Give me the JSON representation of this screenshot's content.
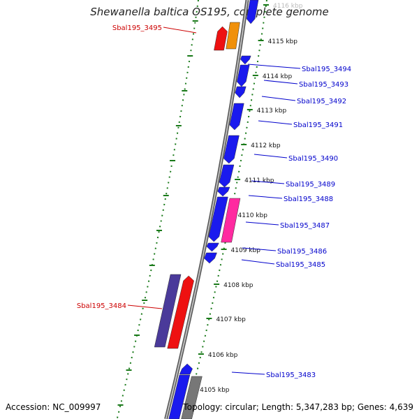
{
  "title": "Shewanella baltica OS195, complete genome",
  "footer": {
    "accession": "Accession: NC_009997",
    "summary": "Topology: circular; Length: 5,347,283 bp; Genes: 4,639"
  },
  "colors": {
    "backbone": "#8a8a8a",
    "tick": "#1a7a1a",
    "label_forward": "#cc0000",
    "label_reverse": "#0000cc",
    "gene_blue": "#1a1aee",
    "gene_red": "#ee1111",
    "gene_orange": "#f0900a",
    "gene_pink": "#ff2aa0",
    "gene_indigo": "#4a3a9a",
    "gene_gray": "#777777"
  },
  "scale": {
    "unit": "kbp",
    "ticks": [
      "4116 kbp",
      "4115 kbp",
      "4114 kbp",
      "4113 kbp",
      "4112 kbp",
      "4111 kbp",
      "4110 kbp",
      "4109 kbp",
      "4108 kbp",
      "4107 kbp",
      "4106 kbp",
      "4105 kbp"
    ]
  },
  "genes": [
    {
      "label": "Sbal195_3495",
      "strand": "forward"
    },
    {
      "label": "Sbal195_3494",
      "strand": "reverse"
    },
    {
      "label": "Sbal195_3493",
      "strand": "reverse"
    },
    {
      "label": "Sbal195_3492",
      "strand": "reverse"
    },
    {
      "label": "Sbal195_3491",
      "strand": "reverse"
    },
    {
      "label": "Sbal195_3490",
      "strand": "reverse"
    },
    {
      "label": "Sbal195_3489",
      "strand": "reverse"
    },
    {
      "label": "Sbal195_3488",
      "strand": "reverse"
    },
    {
      "label": "Sbal195_3487",
      "strand": "reverse"
    },
    {
      "label": "Sbal195_3486",
      "strand": "reverse"
    },
    {
      "label": "Sbal195_3485",
      "strand": "reverse"
    },
    {
      "label": "Sbal195_3484",
      "strand": "forward"
    },
    {
      "label": "Sbal195_3483",
      "strand": "reverse"
    }
  ]
}
